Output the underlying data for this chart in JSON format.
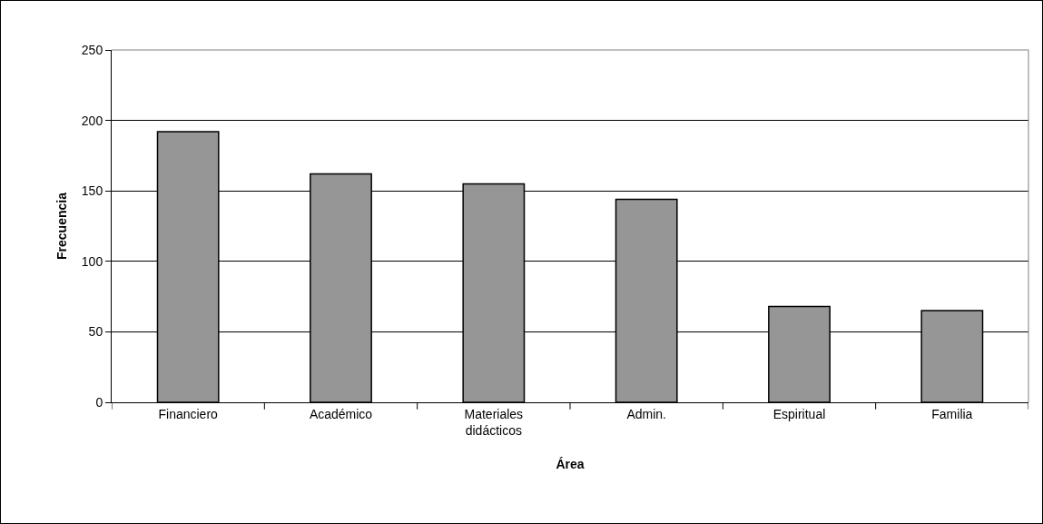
{
  "chart_data": {
    "type": "bar",
    "xlabel": "Área",
    "ylabel": "Frecuencia",
    "categories": [
      "Financiero",
      "Académico",
      "Materiales didácticos",
      "Admin.",
      "Espiritual",
      "Familia"
    ],
    "values": [
      192,
      162,
      155,
      144,
      68,
      65
    ],
    "color": "#969696",
    "ylim": [
      0,
      250
    ],
    "yticks": [
      0,
      50,
      100,
      150,
      200,
      250
    ],
    "grid": "y"
  }
}
